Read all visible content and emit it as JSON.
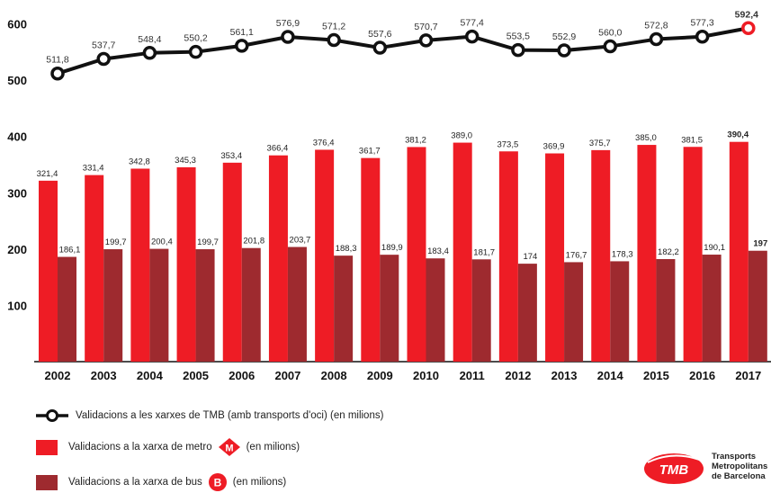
{
  "chart_data": {
    "type": "bar",
    "categories": [
      "2002",
      "2003",
      "2004",
      "2005",
      "2006",
      "2007",
      "2008",
      "2009",
      "2010",
      "2011",
      "2012",
      "2013",
      "2014",
      "2015",
      "2016",
      "2017"
    ],
    "highlight_category": "2017",
    "y_ticks": [
      "100",
      "200",
      "300",
      "400",
      "500",
      "600"
    ],
    "ylim": [
      0,
      620
    ],
    "grid": false,
    "series": [
      {
        "key": "total",
        "type": "line",
        "name": "Validacions a les xarxes de TMB (amb transports d'oci) (en milions)",
        "color": "#111111",
        "values": [
          511.8,
          537.7,
          548.4,
          550.2,
          561.1,
          576.9,
          571.2,
          557.6,
          570.7,
          577.4,
          553.5,
          552.9,
          560.0,
          572.8,
          577.3,
          592.4
        ],
        "labels": [
          "511,8",
          "537,7",
          "548,4",
          "550,2",
          "561,1",
          "576,9",
          "571,2",
          "557,6",
          "570,7",
          "577,4",
          "553,5",
          "552,9",
          "560,0",
          "572,8",
          "577,3",
          "592,4"
        ]
      },
      {
        "key": "metro",
        "type": "bar",
        "name": "Validacions a la xarxa de metro",
        "suffix": "(en milions)",
        "icon": "metro-m-icon",
        "color": "#ee1c25",
        "values": [
          321.4,
          331.4,
          342.8,
          345.3,
          353.4,
          366.4,
          376.4,
          361.7,
          381.2,
          389.0,
          373.5,
          369.9,
          375.7,
          385.0,
          381.5,
          390.4
        ],
        "labels": [
          "321,4",
          "331,4",
          "342,8",
          "345,3",
          "353,4",
          "366,4",
          "376,4",
          "361,7",
          "381,2",
          "389,0",
          "373,5",
          "369,9",
          "375,7",
          "385,0",
          "381,5",
          "390,4"
        ]
      },
      {
        "key": "bus",
        "type": "bar",
        "name": "Validacions a la xarxa de bus",
        "suffix": "(en milions)",
        "icon": "bus-b-icon",
        "color": "#9e2a2f",
        "values": [
          186.1,
          199.7,
          200.4,
          199.7,
          201.8,
          203.7,
          188.3,
          189.9,
          183.4,
          181.7,
          174,
          176.7,
          178.3,
          182.2,
          190.1,
          197
        ],
        "labels": [
          "186,1",
          "199,7",
          "200,4",
          "199,7",
          "201,8",
          "203,7",
          "188,3",
          "189,9",
          "183,4",
          "181,7",
          "174",
          "176,7",
          "178,3",
          "182,2",
          "190,1",
          "197"
        ]
      }
    ],
    "highlight_color": "#ee1c25"
  },
  "legend": {
    "total_label": "Validacions a les xarxes de TMB (amb transports d'oci) (en milions)",
    "metro_label": "Validacions a la xarxa de metro",
    "metro_suffix": "(en milions)",
    "metro_glyph": "M",
    "bus_label": "Validacions a la xarxa de bus",
    "bus_suffix": "(en milions)",
    "bus_glyph": "B"
  },
  "logo": {
    "badge_text": "TMB",
    "line1": "Transports",
    "line2": "Metropolitans",
    "line3": "de Barcelona",
    "color": "#ee1c25"
  }
}
